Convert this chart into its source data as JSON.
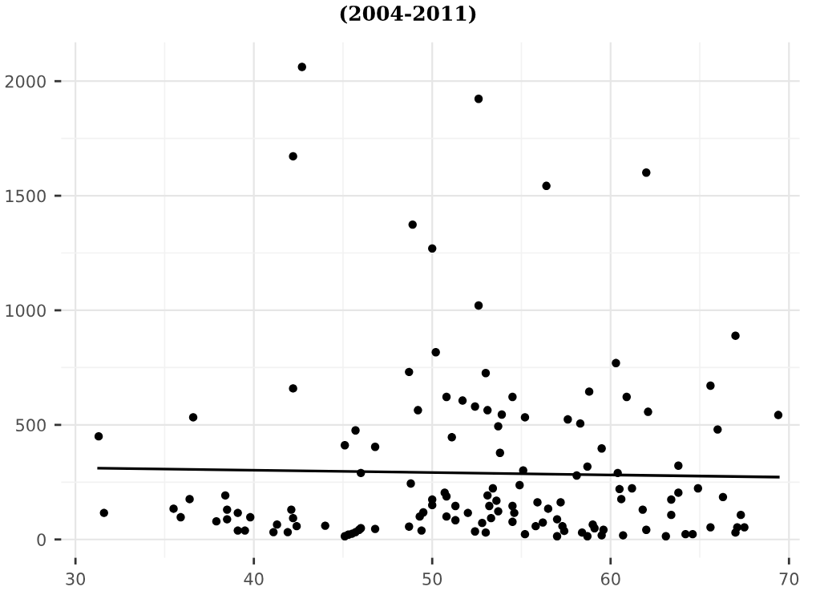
{
  "chart_data": {
    "type": "scatter",
    "title": "(2004-2011)",
    "xlim": [
      29.2,
      70.6
    ],
    "ylim": [
      -80,
      2170
    ],
    "xticks": [
      30,
      40,
      50,
      60,
      70
    ],
    "yticks": [
      0,
      500,
      1000,
      1500,
      2000
    ],
    "grid": true,
    "series": [
      {
        "marker": "circle",
        "color": "#000000",
        "x": [
          42.7,
          42.2,
          52.6,
          56.4,
          48.9,
          50.0,
          62.0,
          52.6,
          67.0,
          31.3,
          31.6,
          36.6,
          42.2,
          35.5,
          35.9,
          36.4,
          37.9,
          38.4,
          38.5,
          38.5,
          39.1,
          39.1,
          39.5,
          39.8,
          41.1,
          41.3,
          41.9,
          42.1,
          42.2,
          42.4,
          44.0,
          45.1,
          45.7,
          46.8,
          46.0,
          45.1,
          45.3,
          45.5,
          45.7,
          45.9,
          46.0,
          46.8,
          48.7,
          49.2,
          48.8,
          48.7,
          49.4,
          49.3,
          49.5,
          50.0,
          50.0,
          50.2,
          50.8,
          51.7,
          52.4,
          53.0,
          53.1,
          53.9,
          53.7,
          51.1,
          53.8,
          54.5,
          55.2,
          55.1,
          54.9,
          57.6,
          58.3,
          58.8,
          60.3,
          60.9,
          62.1,
          59.5,
          58.7,
          58.1,
          60.4,
          63.8,
          65.6,
          66.0,
          69.4,
          50.7,
          50.8,
          50.8,
          51.3,
          51.3,
          52.0,
          52.4,
          52.8,
          53.0,
          53.1,
          53.2,
          53.3,
          53.4,
          53.6,
          53.7,
          54.5,
          54.5,
          54.6,
          55.2,
          55.9,
          55.8,
          56.2,
          56.5,
          57.0,
          57.0,
          57.2,
          57.3,
          57.4,
          58.4,
          58.7,
          59.0,
          59.1,
          59.5,
          59.6,
          60.5,
          60.6,
          61.2,
          60.7,
          61.8,
          62.0,
          63.1,
          63.4,
          63.4,
          63.8,
          64.2,
          64.6,
          64.9,
          65.6,
          66.3,
          67.0,
          67.3,
          67.5,
          67.1
        ],
        "values": [
          2062,
          1672,
          1923,
          1543,
          1374,
          1270,
          1601,
          1021,
          889,
          450,
          116,
          533,
          659,
          134,
          97,
          176,
          79,
          192,
          130,
          88,
          116,
          39,
          39,
          97,
          32,
          65,
          32,
          130,
          93,
          58,
          60,
          411,
          476,
          404,
          290,
          14,
          21,
          25,
          32,
          42,
          49,
          46,
          731,
          564,
          244,
          56,
          39,
          100,
          118,
          174,
          150,
          817,
          622,
          606,
          580,
          726,
          564,
          545,
          494,
          446,
          378,
          622,
          533,
          301,
          237,
          524,
          506,
          645,
          770,
          622,
          557,
          397,
          318,
          279,
          290,
          322,
          671,
          480,
          543,
          204,
          188,
          100,
          146,
          84,
          116,
          35,
          72,
          30,
          192,
          146,
          93,
          223,
          169,
          123,
          146,
          77,
          116,
          23,
          162,
          58,
          74,
          134,
          88,
          14,
          162,
          58,
          37,
          30,
          14,
          65,
          49,
          18,
          42,
          220,
          176,
          223,
          18,
          130,
          42,
          14,
          107,
          174,
          204,
          23,
          23,
          223,
          53,
          185,
          30,
          107,
          53,
          53
        ]
      },
      {
        "type": "line",
        "color": "#000000",
        "x": [
          31.3,
          69.4
        ],
        "values": [
          311,
          272
        ]
      }
    ]
  }
}
